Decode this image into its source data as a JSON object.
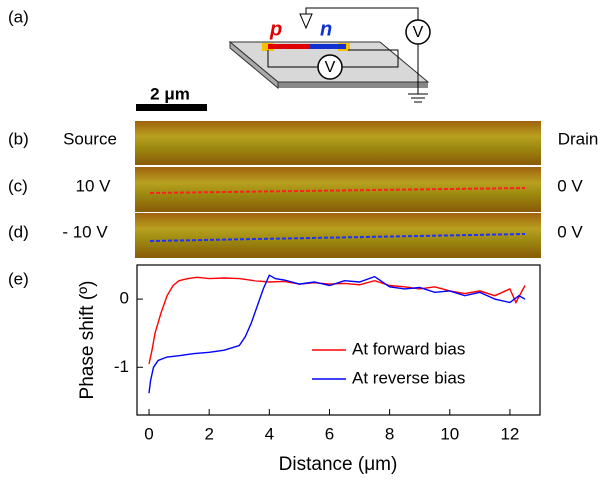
{
  "panel_labels": [
    "(a)",
    "(b)",
    "(c)",
    "(d)",
    "(e)"
  ],
  "schematic": {
    "p_label": "p",
    "n_label": "n",
    "meter_labels": [
      "V",
      "V"
    ]
  },
  "scale_bar": "2 μm",
  "rows": [
    {
      "left": "Source",
      "right": "Drain"
    },
    {
      "left": "10 V",
      "right": "0 V"
    },
    {
      "left": "- 10 V",
      "right": "0 V"
    }
  ],
  "chart_data": {
    "type": "line",
    "x_label": "Distance (μm)",
    "y_label": "Phase shift (º)",
    "xlim": [
      -0.4,
      13
    ],
    "ylim": [
      -1.7,
      0.5
    ],
    "xticks": [
      0,
      2,
      4,
      6,
      8,
      10,
      12
    ],
    "yticks": [
      -1,
      0
    ],
    "legend": "lower right",
    "series": [
      {
        "name": "At forward bias",
        "color": "#ff0000",
        "x": [
          0,
          0.1,
          0.2,
          0.4,
          0.6,
          0.8,
          1,
          1.3,
          1.6,
          2,
          2.5,
          3,
          3.5,
          4,
          4.5,
          5,
          5.5,
          6,
          6.5,
          7,
          7.5,
          8,
          8.5,
          9,
          9.5,
          10,
          10.5,
          11,
          11.5,
          12,
          12.2,
          12.5
        ],
        "values": [
          -0.95,
          -0.75,
          -0.5,
          -0.2,
          0.05,
          0.2,
          0.27,
          0.3,
          0.32,
          0.3,
          0.31,
          0.3,
          0.27,
          0.25,
          0.26,
          0.22,
          0.24,
          0.22,
          0.23,
          0.21,
          0.27,
          0.2,
          0.18,
          0.15,
          0.18,
          0.12,
          0.08,
          0.12,
          0.05,
          0.15,
          -0.05,
          0.2
        ]
      },
      {
        "name": "At reverse bias",
        "color": "#0000ff",
        "x": [
          0,
          0.05,
          0.15,
          0.3,
          0.6,
          1,
          1.5,
          2,
          2.5,
          3,
          3.2,
          3.4,
          3.6,
          3.8,
          4,
          4.2,
          4.5,
          5,
          5.5,
          6,
          6.5,
          7,
          7.5,
          8,
          8.5,
          9,
          9.5,
          10,
          10.5,
          11,
          11.5,
          12,
          12.3,
          12.5
        ],
        "values": [
          -1.38,
          -1.2,
          -1.0,
          -0.9,
          -0.85,
          -0.83,
          -0.8,
          -0.78,
          -0.75,
          -0.68,
          -0.55,
          -0.35,
          -0.1,
          0.15,
          0.35,
          0.3,
          0.28,
          0.22,
          0.25,
          0.2,
          0.27,
          0.25,
          0.33,
          0.18,
          0.15,
          0.17,
          0.1,
          0.12,
          0.05,
          0.1,
          0.0,
          -0.05,
          0.05,
          0.0
        ]
      }
    ]
  }
}
